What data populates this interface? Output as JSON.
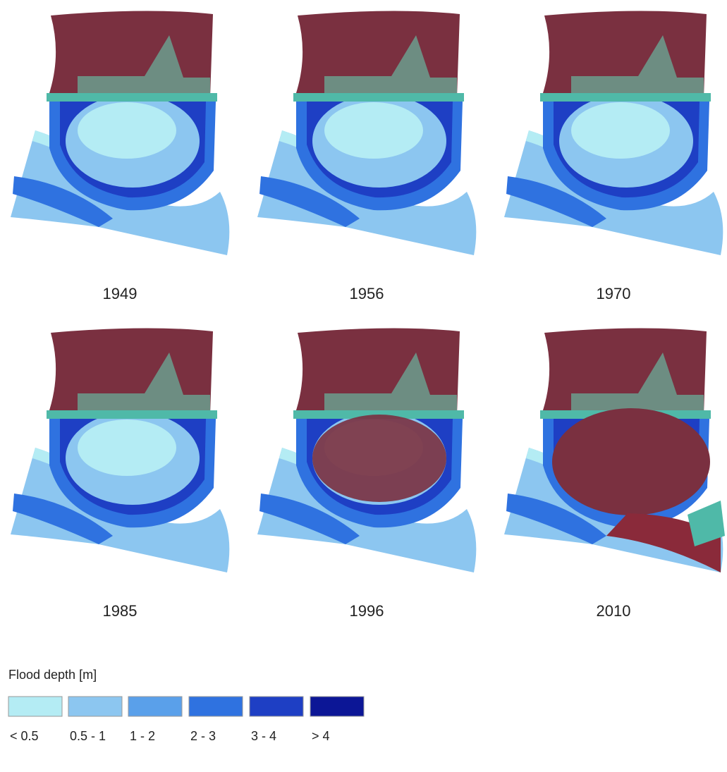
{
  "panels": [
    {
      "label": "1949"
    },
    {
      "label": "1956"
    },
    {
      "label": "1970"
    },
    {
      "label": "1985"
    },
    {
      "label": "1996"
    },
    {
      "label": "2010"
    }
  ],
  "legend": {
    "title": "Flood depth [m]",
    "items": [
      {
        "label": "< 0.5",
        "color": "#b4ecf4"
      },
      {
        "label": "0.5 - 1",
        "color": "#8cc6f0"
      },
      {
        "label": "1 - 2",
        "color": "#5aa0ea"
      },
      {
        "label": "2 - 3",
        "color": "#2f72e0"
      },
      {
        "label": "3 - 4",
        "color": "#1e3fc4"
      },
      {
        "label": "> 4",
        "color": "#0c1696"
      }
    ]
  }
}
